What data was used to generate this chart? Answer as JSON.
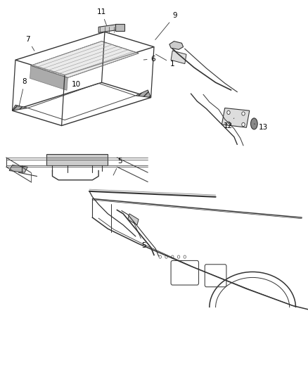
{
  "bg_color": "#ffffff",
  "fig_width": 4.38,
  "fig_height": 5.33,
  "dpi": 100,
  "line_color": "#555555",
  "dark_line": "#222222"
}
